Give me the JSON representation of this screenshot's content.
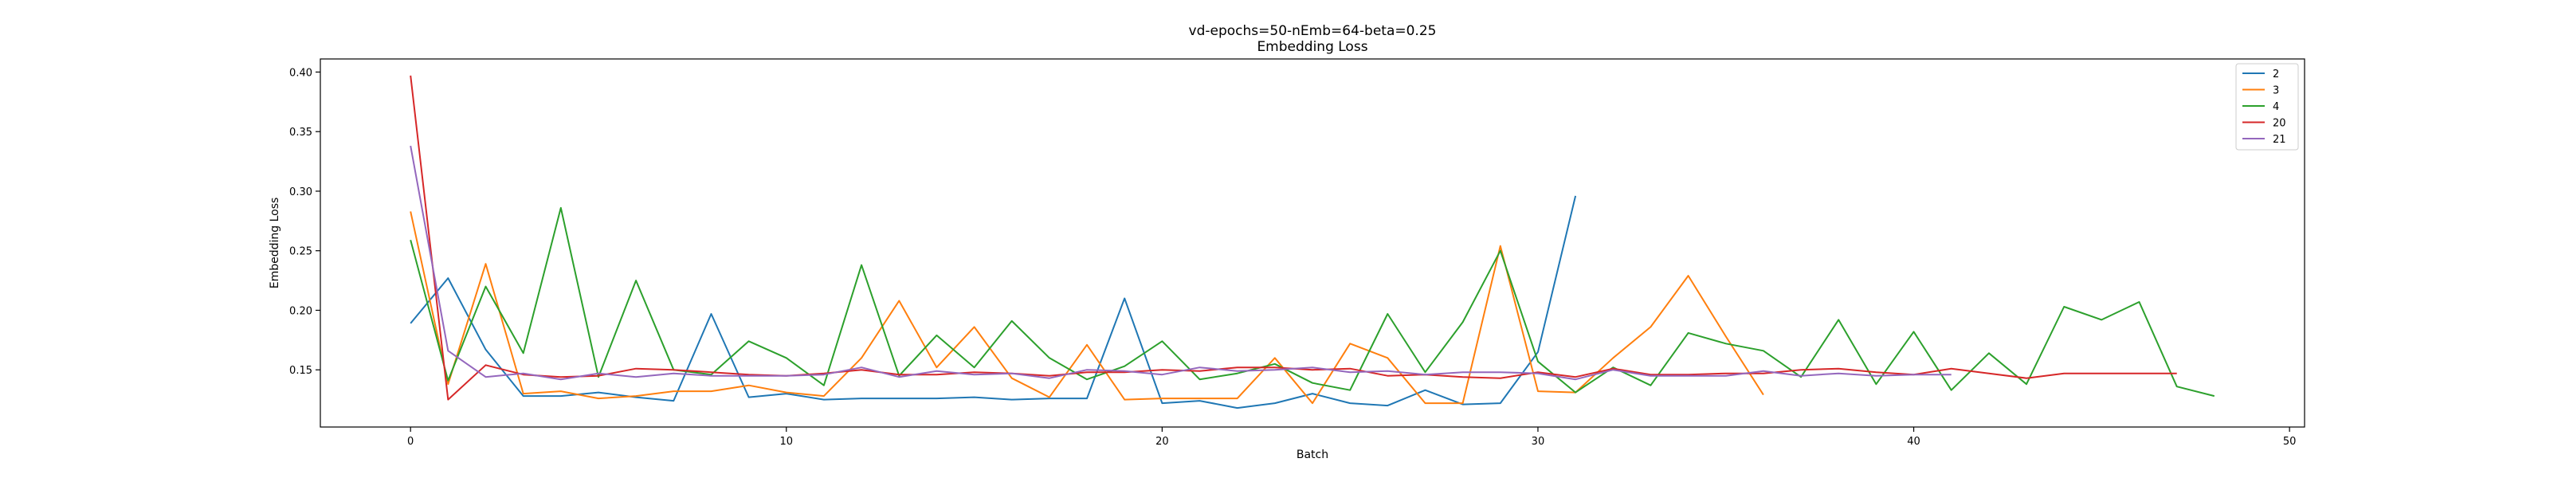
{
  "chart_data": {
    "type": "line",
    "title": "vd-epochs=50-nEmb=64-beta=0.25",
    "subtitle": "Embedding Loss",
    "xlabel": "Batch",
    "ylabel": "Embedding Loss",
    "xlim": [
      -2.4,
      50.4
    ],
    "ylim": [
      0.102,
      0.411
    ],
    "xticks": [
      0,
      10,
      20,
      30,
      40,
      50
    ],
    "yticks": [
      0.15,
      0.2,
      0.25,
      0.3,
      0.35,
      0.4
    ],
    "ytick_labels": [
      "0.15",
      "0.20",
      "0.25",
      "0.30",
      "0.35",
      "0.40"
    ],
    "grid": false,
    "legend_position": "top-right",
    "series": [
      {
        "name": "2",
        "color": "#1f77b4",
        "x": [
          0,
          1,
          2,
          3,
          4,
          5,
          6,
          7,
          8,
          9,
          10,
          11,
          12,
          13,
          14,
          15,
          16,
          17,
          18,
          19,
          20,
          21,
          22,
          23,
          24,
          25,
          26,
          27,
          28,
          29,
          30,
          31
        ],
        "values": [
          0.189,
          0.227,
          0.167,
          0.128,
          0.128,
          0.131,
          0.127,
          0.124,
          0.197,
          0.127,
          0.13,
          0.125,
          0.126,
          0.126,
          0.126,
          0.127,
          0.125,
          0.126,
          0.126,
          0.21,
          0.122,
          0.124,
          0.118,
          0.122,
          0.13,
          0.122,
          0.12,
          0.133,
          0.121,
          0.122,
          0.165,
          0.296
        ]
      },
      {
        "name": "3",
        "color": "#ff7f0e",
        "x": [
          0,
          1,
          2,
          3,
          4,
          5,
          6,
          7,
          8,
          9,
          10,
          11,
          12,
          13,
          14,
          15,
          16,
          17,
          18,
          19,
          20,
          21,
          22,
          23,
          24,
          25,
          26,
          27,
          28,
          29,
          30,
          31,
          32,
          33,
          34,
          35,
          36
        ],
        "values": [
          0.283,
          0.138,
          0.239,
          0.13,
          0.132,
          0.126,
          0.128,
          0.132,
          0.132,
          0.137,
          0.131,
          0.128,
          0.16,
          0.208,
          0.152,
          0.186,
          0.143,
          0.127,
          0.171,
          0.125,
          0.126,
          0.126,
          0.126,
          0.16,
          0.122,
          0.172,
          0.16,
          0.122,
          0.122,
          0.254,
          0.132,
          0.131,
          0.16,
          0.186,
          0.229,
          0.178,
          0.129
        ]
      },
      {
        "name": "4",
        "color": "#2ca02c",
        "x": [
          0,
          1,
          2,
          3,
          4,
          5,
          6,
          7,
          8,
          9,
          10,
          11,
          12,
          13,
          14,
          15,
          16,
          17,
          18,
          19,
          20,
          21,
          22,
          23,
          24,
          25,
          26,
          27,
          28,
          29,
          30,
          31,
          32,
          33,
          34,
          35,
          36,
          37,
          38,
          39,
          40,
          41,
          42,
          43,
          44,
          45,
          46,
          47,
          48
        ],
        "values": [
          0.259,
          0.141,
          0.22,
          0.164,
          0.286,
          0.144,
          0.225,
          0.15,
          0.146,
          0.174,
          0.16,
          0.137,
          0.238,
          0.145,
          0.179,
          0.152,
          0.191,
          0.16,
          0.142,
          0.153,
          0.174,
          0.142,
          0.147,
          0.155,
          0.139,
          0.133,
          0.197,
          0.148,
          0.19,
          0.25,
          0.157,
          0.131,
          0.152,
          0.137,
          0.181,
          0.172,
          0.166,
          0.144,
          0.192,
          0.138,
          0.182,
          0.133,
          0.164,
          0.138,
          0.203,
          0.192,
          0.207,
          0.136,
          0.128
        ]
      },
      {
        "name": "20",
        "color": "#d62728",
        "x": [
          0,
          1,
          2,
          3,
          4,
          5,
          6,
          7,
          8,
          9,
          10,
          11,
          12,
          13,
          14,
          15,
          16,
          17,
          18,
          19,
          20,
          21,
          22,
          23,
          24,
          25,
          26,
          27,
          28,
          29,
          30,
          31,
          32,
          33,
          34,
          35,
          36,
          37,
          38,
          39,
          40,
          41,
          42,
          43,
          44,
          45,
          46,
          47
        ],
        "values": [
          0.397,
          0.125,
          0.154,
          0.146,
          0.144,
          0.145,
          0.151,
          0.15,
          0.148,
          0.146,
          0.145,
          0.147,
          0.15,
          0.146,
          0.146,
          0.148,
          0.147,
          0.145,
          0.148,
          0.148,
          0.15,
          0.149,
          0.152,
          0.152,
          0.15,
          0.151,
          0.145,
          0.146,
          0.144,
          0.143,
          0.148,
          0.144,
          0.151,
          0.146,
          0.146,
          0.147,
          0.147,
          0.15,
          0.151,
          0.148,
          0.146,
          0.151,
          0.147,
          0.143,
          0.147,
          0.147,
          0.147,
          0.147
        ]
      },
      {
        "name": "21",
        "color": "#9467bd",
        "x": [
          0,
          1,
          2,
          3,
          4,
          5,
          6,
          7,
          8,
          9,
          10,
          11,
          12,
          13,
          14,
          15,
          16,
          17,
          18,
          19,
          20,
          21,
          22,
          23,
          24,
          25,
          26,
          27,
          28,
          29,
          30,
          31,
          32,
          33,
          34,
          35,
          36,
          37,
          38,
          39,
          40,
          41
        ],
        "values": [
          0.338,
          0.166,
          0.144,
          0.147,
          0.142,
          0.147,
          0.144,
          0.147,
          0.145,
          0.145,
          0.145,
          0.146,
          0.152,
          0.144,
          0.149,
          0.146,
          0.147,
          0.143,
          0.15,
          0.149,
          0.146,
          0.152,
          0.149,
          0.15,
          0.152,
          0.148,
          0.149,
          0.146,
          0.148,
          0.148,
          0.147,
          0.142,
          0.15,
          0.145,
          0.145,
          0.145,
          0.149,
          0.145,
          0.147,
          0.145,
          0.146,
          0.146
        ]
      }
    ]
  }
}
